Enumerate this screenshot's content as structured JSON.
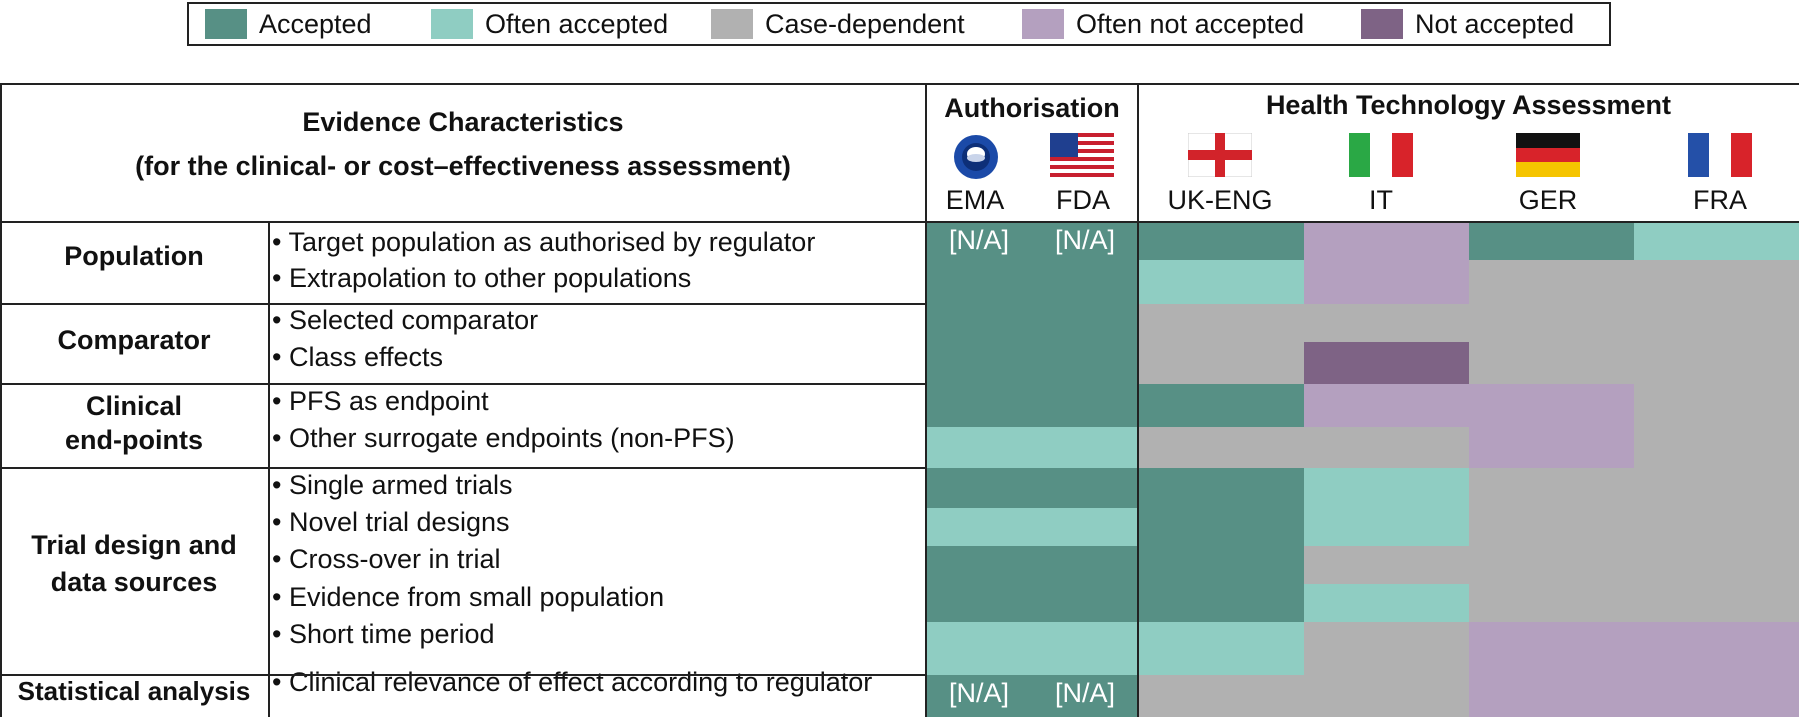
{
  "legend": {
    "items": [
      {
        "label": "Accepted",
        "color": "#579085"
      },
      {
        "label": "Often accepted",
        "color": "#8fcdc2"
      },
      {
        "label": "Case-dependent",
        "color": "#b1b1b1"
      },
      {
        "label": "Often not accepted",
        "color": "#b4a0bf"
      },
      {
        "label": "Not accepted",
        "color": "#7e6385"
      }
    ]
  },
  "header": {
    "evidence_title": "Evidence Characteristics",
    "evidence_subtitle": "(for the clinical- or cost–effectiveness assessment)",
    "authorisation": "Authorisation",
    "hta": "Health Technology Assessment",
    "agencies": [
      {
        "label": "EMA",
        "icon": "ema-logo-icon"
      },
      {
        "label": "FDA",
        "icon": "us-flag-icon"
      },
      {
        "label": "UK-ENG",
        "icon": "england-flag-icon"
      },
      {
        "label": "IT",
        "icon": "italy-flag-icon"
      },
      {
        "label": "GER",
        "icon": "germany-flag-icon"
      },
      {
        "label": "FRA",
        "icon": "france-flag-icon"
      }
    ]
  },
  "categories": [
    {
      "name": "Population"
    },
    {
      "name_line1": "Comparator"
    },
    {
      "name_line1": "Clinical",
      "name_line2": "end-points"
    },
    {
      "name_line1": "Trial design and",
      "name_line2": "data sources"
    },
    {
      "name_line1": "Statistical analysis"
    }
  ],
  "rows": [
    {
      "label": "• Target population as authorised by regulator",
      "ratings": [
        "N/A",
        "N/A",
        "accepted",
        "often_not",
        "accepted",
        "often"
      ]
    },
    {
      "label": "• Extrapolation to other populations",
      "ratings": [
        "accepted",
        "accepted",
        "often",
        "often_not",
        "case",
        "case"
      ]
    },
    {
      "label": "• Selected comparator",
      "ratings": [
        "accepted",
        "accepted",
        "case",
        "case",
        "case",
        "case"
      ]
    },
    {
      "label": "• Class effects",
      "ratings": [
        "accepted",
        "accepted",
        "case",
        "not",
        "case",
        "case"
      ]
    },
    {
      "label": "• PFS as endpoint",
      "ratings": [
        "accepted",
        "accepted",
        "accepted",
        "often_not",
        "often_not",
        "case"
      ]
    },
    {
      "label": "• Other surrogate endpoints (non-PFS)",
      "ratings": [
        "often",
        "often",
        "case",
        "case",
        "often_not",
        "case"
      ]
    },
    {
      "label": "• Single armed trials",
      "ratings": [
        "accepted",
        "accepted",
        "accepted",
        "often",
        "case",
        "case"
      ]
    },
    {
      "label": "• Novel trial designs",
      "ratings": [
        "often",
        "often",
        "accepted",
        "often",
        "case",
        "case"
      ]
    },
    {
      "label": "• Cross-over in trial",
      "ratings": [
        "accepted",
        "accepted",
        "accepted",
        "case",
        "case",
        "case"
      ]
    },
    {
      "label": "• Evidence from small population",
      "ratings": [
        "accepted",
        "accepted",
        "accepted",
        "often",
        "case",
        "case"
      ]
    },
    {
      "label": "• Short time period",
      "ratings": [
        "often",
        "often",
        "often",
        "case",
        "often_not",
        "often_not"
      ]
    },
    {
      "label": "• Clinical relevance of effect according to regulator",
      "ratings": [
        "N/A",
        "N/A",
        "case",
        "case",
        "often_not",
        "often_not"
      ]
    }
  ],
  "na_text": "[N/A]",
  "colors": {
    "accepted": "#579085",
    "often": "#8fcdc2",
    "case": "#b1b1b1",
    "often_not": "#b4a0bf",
    "not": "#7e6385",
    "na_bg": "#579085"
  }
}
